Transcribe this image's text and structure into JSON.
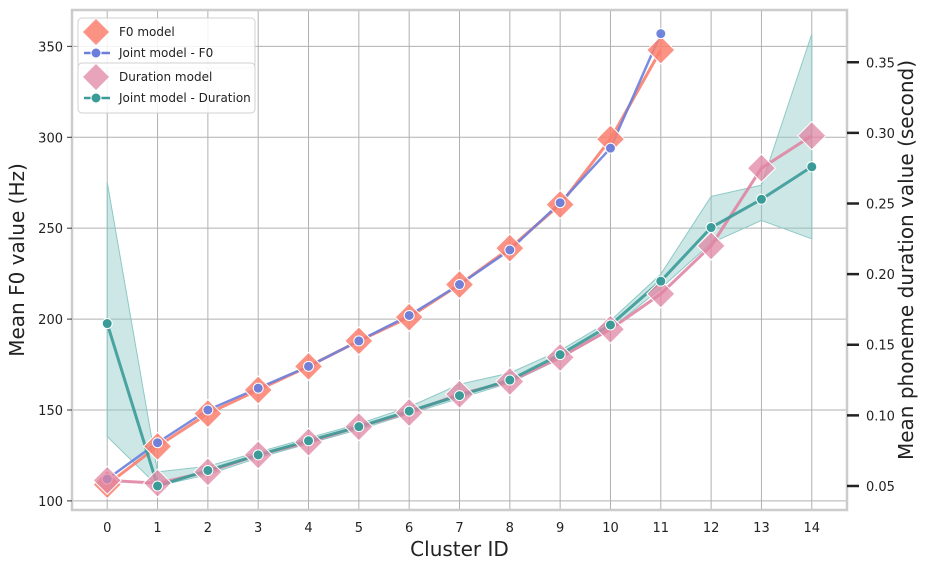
{
  "chart_data": {
    "type": "line",
    "title": "",
    "xlabel": "Cluster ID",
    "ylabel_left": "Mean F0 value (Hz)",
    "ylabel_right": "Mean phoneme duration value (second)",
    "x_ticks": [
      "0",
      "1",
      "2",
      "3",
      "4",
      "5",
      "6",
      "7",
      "8",
      "9",
      "10",
      "11",
      "12",
      "13",
      "14"
    ],
    "xlim": [
      -0.7,
      14.7
    ],
    "ylim_left": [
      95,
      370
    ],
    "ylim_right": [
      0.033,
      0.387
    ],
    "y_ticks_left": [
      "100",
      "150",
      "200",
      "250",
      "300",
      "350"
    ],
    "y_ticks_right": [
      "0.05",
      "0.10",
      "0.15",
      "0.20",
      "0.25",
      "0.30",
      "0.35"
    ],
    "grid": true,
    "legend_placement": "top-left",
    "colors": {
      "f0_model": "#fa7f6f",
      "joint_f0": "#6a7fdb",
      "duration_model": "#e085a3",
      "joint_duration": "#3b9b98",
      "duration_band": "#8ec9c6"
    },
    "series": [
      {
        "name": "F0 model",
        "axis": "left",
        "marker": "diamond",
        "x": [
          0,
          1,
          2,
          3,
          4,
          5,
          6,
          7,
          8,
          9,
          10,
          11
        ],
        "values": [
          109,
          130,
          148,
          161,
          174,
          188,
          201,
          219,
          239,
          263,
          299,
          348
        ]
      },
      {
        "name": "Joint model - F0",
        "axis": "left",
        "marker": "circle",
        "x": [
          0,
          1,
          2,
          3,
          4,
          5,
          6,
          7,
          8,
          9,
          10,
          11
        ],
        "values": [
          112,
          132,
          150,
          162,
          174,
          188,
          202,
          219,
          238,
          264,
          294,
          357
        ]
      },
      {
        "name": "Duration model",
        "axis": "right",
        "marker": "diamond",
        "x": [
          0,
          1,
          2,
          3,
          4,
          5,
          6,
          7,
          8,
          9,
          10,
          11,
          12,
          13,
          14
        ],
        "values": [
          0.054,
          0.052,
          0.06,
          0.072,
          0.081,
          0.092,
          0.102,
          0.115,
          0.124,
          0.141,
          0.161,
          0.186,
          0.22,
          0.275,
          0.298
        ]
      },
      {
        "name": "Joint model - Duration",
        "axis": "right",
        "marker": "circle",
        "x": [
          0,
          1,
          2,
          3,
          4,
          5,
          6,
          7,
          8,
          9,
          10,
          11,
          12,
          13,
          14
        ],
        "values": [
          0.165,
          0.05,
          0.061,
          0.072,
          0.082,
          0.092,
          0.103,
          0.114,
          0.125,
          0.143,
          0.164,
          0.195,
          0.233,
          0.253,
          0.276
        ],
        "band_low": [
          0.085,
          0.05,
          0.058,
          0.07,
          0.08,
          0.09,
          0.101,
          0.112,
          0.123,
          0.14,
          0.161,
          0.19,
          0.222,
          0.238,
          0.225
        ],
        "band_high": [
          0.265,
          0.06,
          0.064,
          0.074,
          0.084,
          0.094,
          0.106,
          0.122,
          0.13,
          0.146,
          0.167,
          0.2,
          0.255,
          0.263,
          0.37
        ]
      }
    ]
  }
}
